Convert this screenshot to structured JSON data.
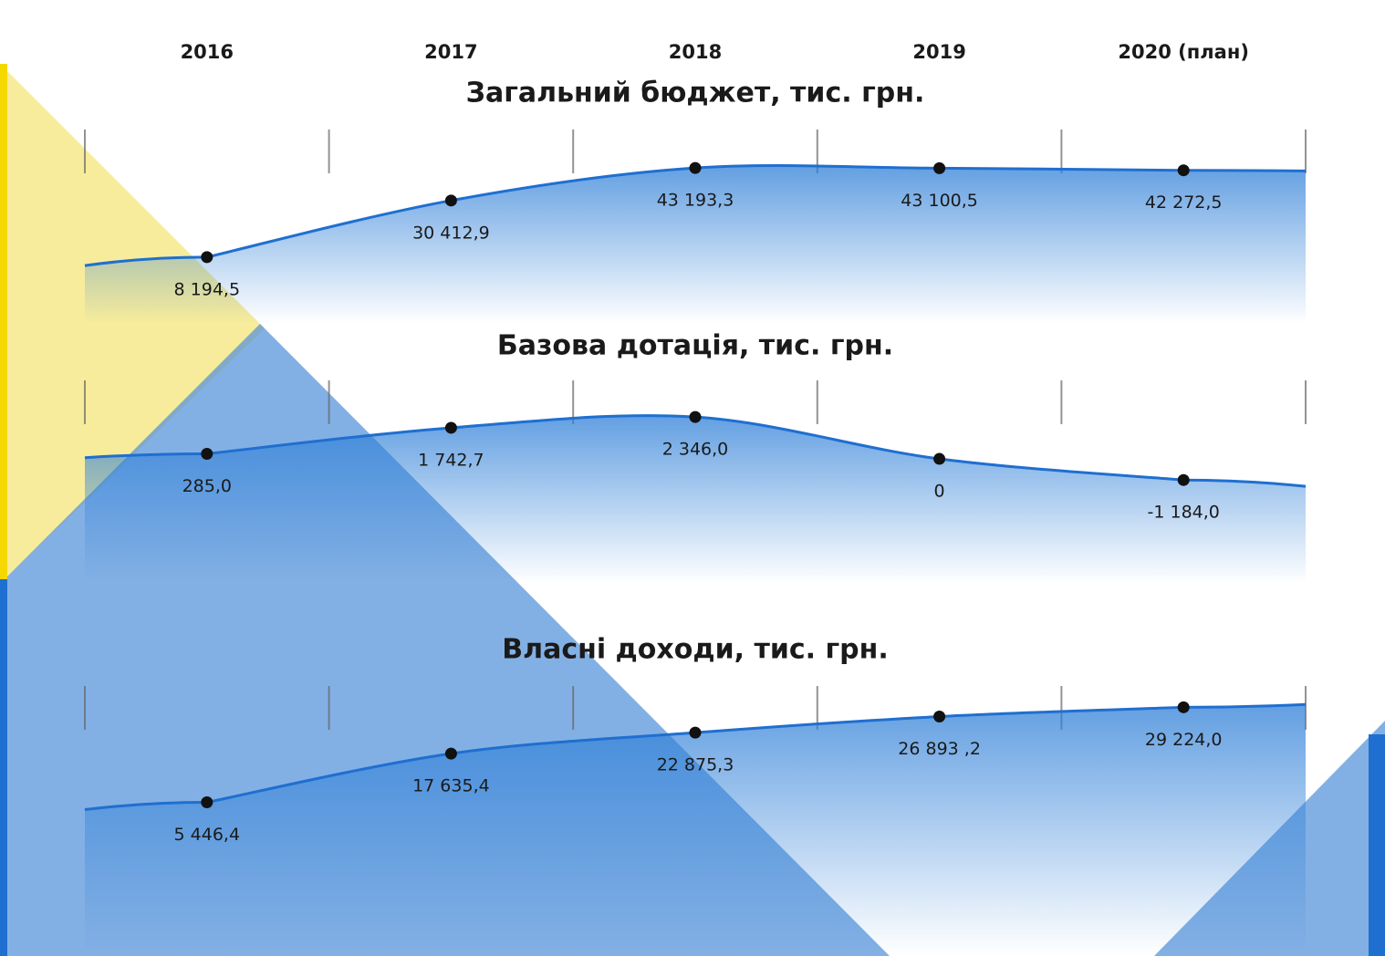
{
  "chart_data": [
    {
      "type": "line",
      "title": "Загальний бюджет,  тис. грн.",
      "categories": [
        "2016",
        "2017",
        "2018",
        "2019",
        "2020 (план)"
      ],
      "values": [
        8194.5,
        30412.9,
        43193.3,
        43100.5,
        42272.5
      ],
      "value_labels": [
        "8 194,5",
        "30 412,9",
        "43 193,3",
        "43 100,5",
        "42 272,5"
      ],
      "color": "#1f6fd0",
      "ylim": [
        -18000,
        59000
      ]
    },
    {
      "type": "line",
      "title": "Базова дотація, тис. грн.",
      "values": [
        285.0,
        1742.7,
        2346.0,
        0,
        -1184.0
      ],
      "value_labels": [
        "285,0",
        "1 742,7",
        "2 346,0",
        "0",
        "-1 184,0"
      ],
      "color": "#1f6fd0",
      "ylim": [
        -7000,
        4500
      ]
    },
    {
      "type": "line",
      "title": "Власні доходи, тис. грн.",
      "values": [
        5446.4,
        17635.4,
        22875.3,
        26893.2,
        29224.0
      ],
      "value_labels": [
        "5 446,4",
        "17 635,4",
        "22 875,3",
        "26 893 ,2",
        "29 224,0"
      ],
      "color": "#1f6fd0",
      "ylim": [
        -33000,
        35000
      ]
    }
  ]
}
